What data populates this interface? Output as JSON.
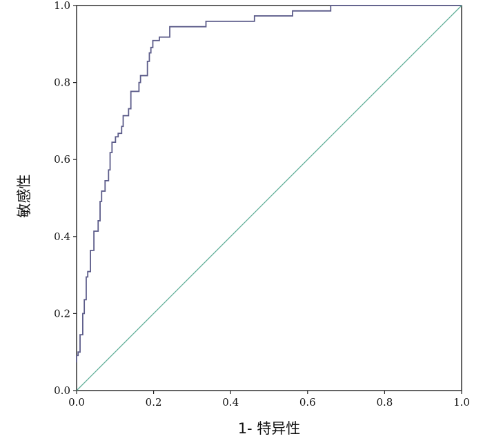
{
  "chart_data": {
    "type": "line",
    "xlabel": "1- 特异性",
    "ylabel": "敏感性",
    "xlim": [
      0,
      1
    ],
    "ylim": [
      0,
      1
    ],
    "x_ticks": [
      "0.0",
      "0.2",
      "0.4",
      "0.6",
      "0.8",
      "1.0"
    ],
    "y_ticks": [
      "0.0",
      "0.2",
      "0.4",
      "0.6",
      "0.8",
      "1.0"
    ],
    "grid": false,
    "legend": "none",
    "series": [
      {
        "color": "#5c5c8a",
        "shape": "step",
        "points": [
          [
            0.0,
            0.073
          ],
          [
            0.0,
            0.091
          ],
          [
            0.004,
            0.091
          ],
          [
            0.004,
            0.1
          ],
          [
            0.009,
            0.1
          ],
          [
            0.009,
            0.145
          ],
          [
            0.016,
            0.145
          ],
          [
            0.016,
            0.2
          ],
          [
            0.02,
            0.2
          ],
          [
            0.02,
            0.236
          ],
          [
            0.025,
            0.236
          ],
          [
            0.025,
            0.295
          ],
          [
            0.029,
            0.295
          ],
          [
            0.029,
            0.309
          ],
          [
            0.036,
            0.309
          ],
          [
            0.036,
            0.364
          ],
          [
            0.045,
            0.364
          ],
          [
            0.045,
            0.414
          ],
          [
            0.056,
            0.414
          ],
          [
            0.056,
            0.441
          ],
          [
            0.061,
            0.441
          ],
          [
            0.061,
            0.491
          ],
          [
            0.065,
            0.491
          ],
          [
            0.065,
            0.518
          ],
          [
            0.074,
            0.518
          ],
          [
            0.074,
            0.545
          ],
          [
            0.083,
            0.545
          ],
          [
            0.083,
            0.573
          ],
          [
            0.087,
            0.573
          ],
          [
            0.087,
            0.618
          ],
          [
            0.092,
            0.618
          ],
          [
            0.092,
            0.645
          ],
          [
            0.101,
            0.645
          ],
          [
            0.101,
            0.659
          ],
          [
            0.108,
            0.659
          ],
          [
            0.108,
            0.668
          ],
          [
            0.117,
            0.668
          ],
          [
            0.117,
            0.686
          ],
          [
            0.121,
            0.686
          ],
          [
            0.121,
            0.714
          ],
          [
            0.135,
            0.714
          ],
          [
            0.135,
            0.732
          ],
          [
            0.141,
            0.732
          ],
          [
            0.141,
            0.777
          ],
          [
            0.162,
            0.777
          ],
          [
            0.162,
            0.8
          ],
          [
            0.166,
            0.8
          ],
          [
            0.166,
            0.818
          ],
          [
            0.184,
            0.818
          ],
          [
            0.184,
            0.855
          ],
          [
            0.189,
            0.855
          ],
          [
            0.189,
            0.877
          ],
          [
            0.193,
            0.877
          ],
          [
            0.193,
            0.891
          ],
          [
            0.198,
            0.891
          ],
          [
            0.198,
            0.909
          ],
          [
            0.215,
            0.909
          ],
          [
            0.215,
            0.918
          ],
          [
            0.242,
            0.918
          ],
          [
            0.242,
            0.945
          ],
          [
            0.336,
            0.945
          ],
          [
            0.336,
            0.959
          ],
          [
            0.462,
            0.959
          ],
          [
            0.462,
            0.973
          ],
          [
            0.561,
            0.973
          ],
          [
            0.561,
            0.986
          ],
          [
            0.66,
            0.986
          ],
          [
            0.66,
            1.0
          ],
          [
            1.0,
            1.0
          ]
        ]
      },
      {
        "color": "#5fae97",
        "shape": "line",
        "points": [
          [
            0,
            0
          ],
          [
            1,
            1
          ]
        ]
      }
    ]
  }
}
